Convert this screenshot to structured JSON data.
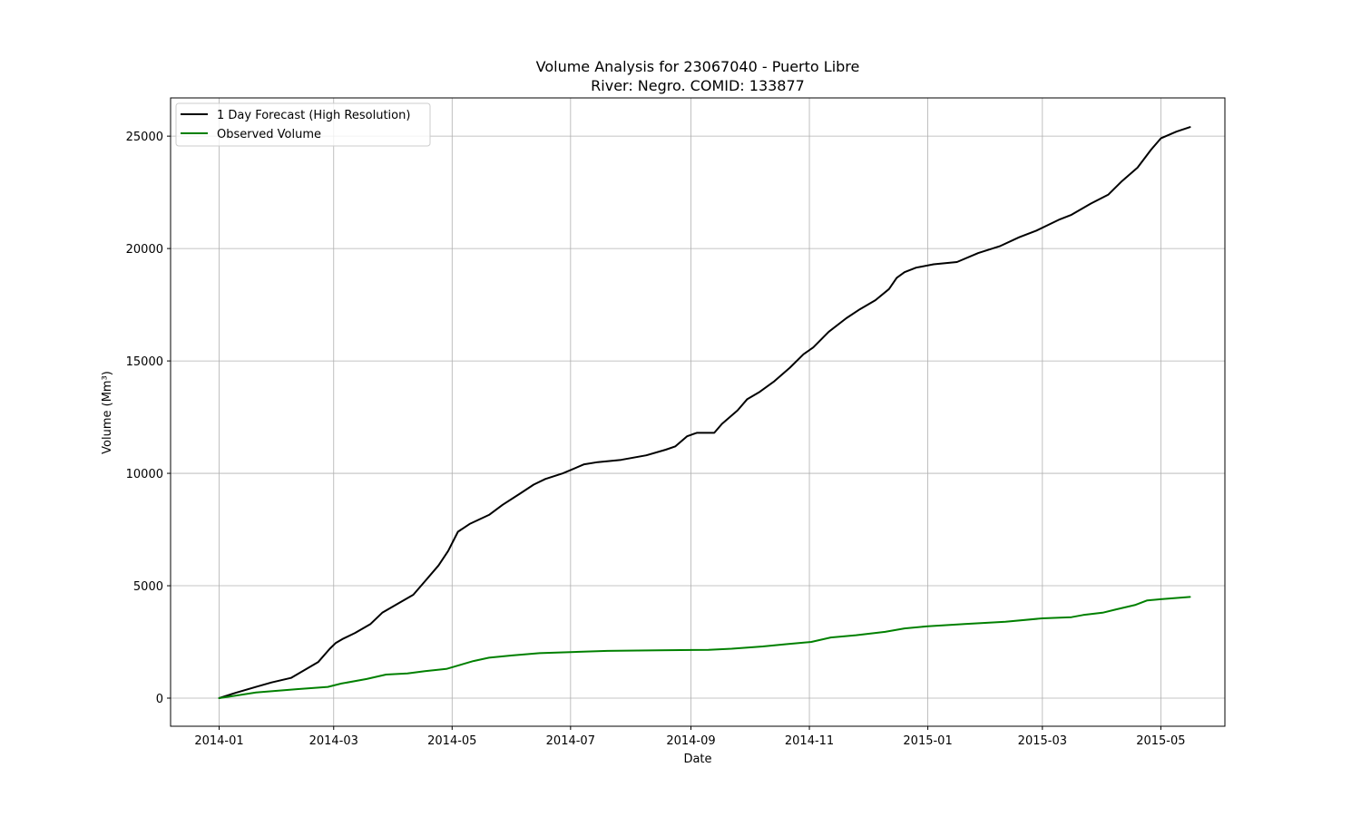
{
  "chart_data": {
    "type": "line",
    "title": "Volume Analysis for 23067040 - Puerto Libre",
    "subtitle": "River: Negro. COMID: 133877",
    "xlabel": "Date",
    "ylabel": "Volume (Mm³)",
    "xlim": [
      "2013-12-07",
      "2015-06-03"
    ],
    "ylim": [
      -1250,
      26700
    ],
    "x_ticks": [
      "2014-01",
      "2014-03",
      "2014-05",
      "2014-07",
      "2014-09",
      "2014-11",
      "2015-01",
      "2015-03",
      "2015-05"
    ],
    "y_ticks": [
      0,
      5000,
      10000,
      15000,
      20000,
      25000
    ],
    "grid": true,
    "legend_position": "top-left",
    "series": [
      {
        "name": "1 Day Forecast (High Resolution)",
        "color": "#000000",
        "x": [
          "2014-01-01",
          "2014-01-10",
          "2014-01-20",
          "2014-01-28",
          "2014-02-07",
          "2014-02-15",
          "2014-02-21",
          "2014-02-27",
          "2014-03-02",
          "2014-03-06",
          "2014-03-12",
          "2014-03-20",
          "2014-03-26",
          "2014-04-02",
          "2014-04-11",
          "2014-04-18",
          "2014-04-24",
          "2014-04-29",
          "2014-05-04",
          "2014-05-10",
          "2014-05-20",
          "2014-05-27",
          "2014-06-05",
          "2014-06-12",
          "2014-06-18",
          "2014-06-27",
          "2014-07-08",
          "2014-07-15",
          "2014-07-27",
          "2014-08-09",
          "2014-08-19",
          "2014-08-24",
          "2014-08-30",
          "2014-09-04",
          "2014-09-13",
          "2014-09-17",
          "2014-09-25",
          "2014-09-30",
          "2014-10-06",
          "2014-10-14",
          "2014-10-22",
          "2014-10-29",
          "2014-11-03",
          "2014-11-11",
          "2014-11-20",
          "2014-11-27",
          "2014-12-05",
          "2014-12-12",
          "2014-12-16",
          "2014-12-20",
          "2014-12-26",
          "2015-01-04",
          "2015-01-16",
          "2015-01-27",
          "2015-02-07",
          "2015-02-17",
          "2015-02-26",
          "2015-03-10",
          "2015-03-16",
          "2015-03-26",
          "2015-04-04",
          "2015-04-11",
          "2015-04-19",
          "2015-04-26",
          "2015-05-01",
          "2015-05-09",
          "2015-05-16"
        ],
        "values": [
          0,
          250,
          500,
          700,
          900,
          1300,
          1600,
          2200,
          2450,
          2650,
          2900,
          3300,
          3800,
          4150,
          4600,
          5300,
          5900,
          6550,
          7400,
          7750,
          8150,
          8600,
          9100,
          9500,
          9750,
          10000,
          10400,
          10500,
          10600,
          10800,
          11050,
          11200,
          11650,
          11800,
          11800,
          12200,
          12800,
          13300,
          13600,
          14100,
          14700,
          15300,
          15600,
          16300,
          16900,
          17300,
          17700,
          18200,
          18700,
          18950,
          19150,
          19300,
          19400,
          19800,
          20100,
          20500,
          20800,
          21300,
          21500,
          22000,
          22400,
          23000,
          23600,
          24400,
          24900,
          25200,
          25400
        ]
      },
      {
        "name": "Observed Volume",
        "color": "#008000",
        "x": [
          "2014-01-01",
          "2014-01-20",
          "2014-02-10",
          "2014-02-26",
          "2014-03-05",
          "2014-03-18",
          "2014-03-28",
          "2014-04-08",
          "2014-04-17",
          "2014-04-28",
          "2014-05-06",
          "2014-05-12",
          "2014-05-20",
          "2014-06-01",
          "2014-06-15",
          "2014-07-01",
          "2014-07-20",
          "2014-08-15",
          "2014-09-10",
          "2014-09-22",
          "2014-09-30",
          "2014-10-08",
          "2014-10-20",
          "2014-11-02",
          "2014-11-12",
          "2014-11-25",
          "2014-12-10",
          "2014-12-20",
          "2015-01-01",
          "2015-01-20",
          "2015-02-10",
          "2015-03-01",
          "2015-03-16",
          "2015-03-22",
          "2015-04-01",
          "2015-04-08",
          "2015-04-18",
          "2015-04-24",
          "2015-05-01",
          "2015-05-16"
        ],
        "values": [
          0,
          250,
          400,
          500,
          650,
          850,
          1050,
          1100,
          1200,
          1300,
          1500,
          1650,
          1800,
          1900,
          2000,
          2050,
          2100,
          2130,
          2150,
          2200,
          2250,
          2300,
          2400,
          2500,
          2700,
          2800,
          2950,
          3100,
          3200,
          3300,
          3400,
          3550,
          3600,
          3700,
          3800,
          3950,
          4150,
          4350,
          4400,
          4500
        ]
      }
    ]
  }
}
